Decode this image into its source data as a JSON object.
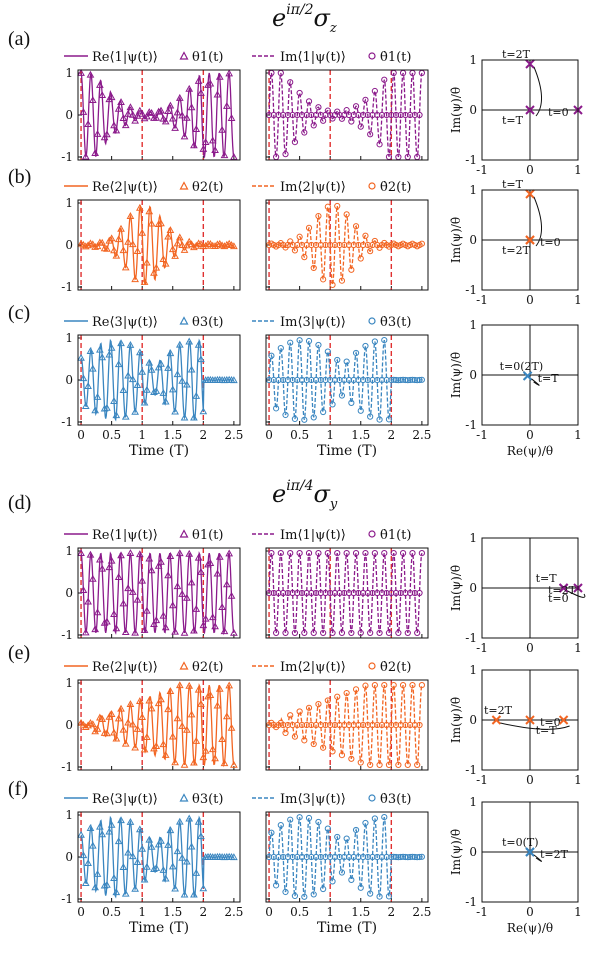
{
  "titles": {
    "top": {
      "base": "e",
      "exponent": "iπ/2",
      "sigma": "σ",
      "sub": "z"
    },
    "bottom": {
      "base": "e",
      "exponent": "iπ/4",
      "sigma": "σ",
      "sub": "y"
    }
  },
  "colors": {
    "1": "#8b1a8b",
    "2": "#f26522",
    "3": "#3a86c0",
    "vline": "#e03030"
  },
  "chart_data": [
    {
      "panel": "(a)",
      "type": "line",
      "level": "1",
      "block": "σz",
      "legend_left": [
        "Re⟨1|ψ(t)⟩",
        "θ1(t)"
      ],
      "legend_right": [
        "Im⟨1|ψ(t)⟩",
        "θ̇1(t)"
      ],
      "envelope": "dip",
      "vlines": [
        0,
        1,
        2
      ],
      "xlim": [
        -0.05,
        2.6
      ],
      "ylim": [
        -1,
        1
      ],
      "yticks": [
        "1",
        "0",
        "-1"
      ],
      "xticks": [],
      "phase": {
        "ylabel": "Im(ψ)/θ̇",
        "xlabel": "",
        "xticks": [
          "-1",
          "0",
          "1"
        ],
        "yticks": [
          "1",
          "0",
          "-1"
        ],
        "points": [
          {
            "x": 0,
            "y": 1,
            "label": "t=2T"
          },
          {
            "x": 1,
            "y": 0,
            "label": "t=0"
          },
          {
            "x": 0,
            "y": 0,
            "label": "t=T"
          }
        ]
      }
    },
    {
      "panel": "(b)",
      "type": "line",
      "level": "2",
      "block": "σz",
      "legend_left": [
        "Re⟨2|ψ(t)⟩",
        "θ2(t)"
      ],
      "legend_right": [
        "Im⟨2|ψ(t)⟩",
        "θ̇2(t)"
      ],
      "envelope": "bump",
      "vlines": [
        0,
        1,
        2
      ],
      "xlim": [
        -0.05,
        2.6
      ],
      "ylim": [
        -1,
        1
      ],
      "yticks": [
        "1",
        "0",
        "-1"
      ],
      "xticks": [],
      "phase": {
        "ylabel": "Im(ψ)/θ̇",
        "xlabel": "",
        "xticks": [
          "-1",
          "0",
          "1"
        ],
        "yticks": [
          "1",
          "0",
          "-1"
        ],
        "points": [
          {
            "x": 0,
            "y": 1,
            "label": "t=T"
          },
          {
            "x": 0,
            "y": 0,
            "label": "t=0"
          },
          {
            "x": 0,
            "y": 0,
            "label": "t=2T"
          }
        ]
      }
    },
    {
      "panel": "(c)",
      "type": "line",
      "level": "3",
      "block": "σz",
      "legend_left": [
        "Re⟨3|ψ(t)⟩",
        "θ3(t)"
      ],
      "legend_right": [
        "Im⟨3|ψ(t)⟩",
        "θ̇3(t)"
      ],
      "envelope": "half",
      "vlines": [
        0,
        1,
        2
      ],
      "xlim": [
        -0.05,
        2.6
      ],
      "ylim": [
        -1,
        1
      ],
      "yticks": [
        "1",
        "0",
        "-1"
      ],
      "xticks": [
        "0",
        "0.5",
        "1",
        "1.5",
        "2",
        "2.5"
      ],
      "xlabel": "Time (T)",
      "phase": {
        "ylabel": "Im(ψ)/θ̇",
        "xlabel": "Re(ψ)/θ",
        "xticks": [
          "-1",
          "0",
          "1"
        ],
        "yticks": [
          "1",
          "0",
          "-1"
        ],
        "points": [
          {
            "x": -0.05,
            "y": -0.02,
            "label": "t=0(2T)"
          },
          {
            "x": -0.05,
            "y": -0.02,
            "label": "t=T"
          }
        ]
      }
    },
    {
      "panel": "(d)",
      "type": "line",
      "level": "1",
      "block": "σy",
      "legend_left": [
        "Re⟨1|ψ(t)⟩",
        "θ1(t)"
      ],
      "legend_right": [
        "Im⟨1|ψ(t)⟩",
        "θ̇1(t)"
      ],
      "envelope": "flat",
      "vlines": [
        0,
        1,
        2
      ],
      "xlim": [
        -0.05,
        2.6
      ],
      "ylim": [
        -1,
        1
      ],
      "yticks": [
        "1",
        "0",
        "-1"
      ],
      "xticks": [],
      "phase": {
        "ylabel": "Im(ψ)/θ̇",
        "xlabel": "",
        "xticks": [
          "-1",
          "0",
          "1"
        ],
        "yticks": [
          "1",
          "0",
          "-1"
        ],
        "points": [
          {
            "x": 0.7,
            "y": 0,
            "label": "t=T"
          },
          {
            "x": 0.7,
            "y": 0,
            "label": "t=2T"
          },
          {
            "x": 1,
            "y": 0,
            "label": "t=0"
          }
        ]
      }
    },
    {
      "panel": "(e)",
      "type": "line",
      "level": "2",
      "block": "σy",
      "legend_left": [
        "Re⟨2|ψ(t)⟩",
        "θ2(t)"
      ],
      "legend_right": [
        "Im⟨2|ψ(t)⟩",
        "θ̇2(t)"
      ],
      "envelope": "rise",
      "vlines": [
        0,
        1,
        2
      ],
      "xlim": [
        -0.05,
        2.6
      ],
      "ylim": [
        -1,
        1
      ],
      "yticks": [
        "1",
        "0",
        "-1"
      ],
      "xticks": [],
      "phase": {
        "ylabel": "Im(ψ)/θ̇",
        "xlabel": "",
        "xticks": [
          "-1",
          "0",
          "1"
        ],
        "yticks": [
          "1",
          "0",
          "-1"
        ],
        "points": [
          {
            "x": -0.7,
            "y": 0,
            "label": "t=2T"
          },
          {
            "x": 0,
            "y": 0,
            "label": "t=0"
          },
          {
            "x": 0.7,
            "y": 0,
            "label": "t=T"
          }
        ]
      }
    },
    {
      "panel": "(f)",
      "type": "line",
      "level": "3",
      "block": "σy",
      "legend_left": [
        "Re⟨3|ψ(t)⟩",
        "θ3(t)"
      ],
      "legend_right": [
        "Im⟨3|ψ(t)⟩",
        "θ̇3(t)"
      ],
      "envelope": "half",
      "vlines": [
        0,
        1,
        2
      ],
      "xlim": [
        -0.05,
        2.6
      ],
      "ylim": [
        -1,
        1
      ],
      "yticks": [
        "1",
        "0",
        "-1"
      ],
      "xticks": [
        "0",
        "0.5",
        "1",
        "1.5",
        "2",
        "2.5"
      ],
      "xlabel": "Time (T)",
      "phase": {
        "ylabel": "Im(ψ)/θ̇",
        "xlabel": "Re(ψ)/θ",
        "xticks": [
          "-1",
          "0",
          "1"
        ],
        "yticks": [
          "1",
          "0",
          "-1"
        ],
        "points": [
          {
            "x": 0,
            "y": 0,
            "label": "t=0(T)"
          },
          {
            "x": 0,
            "y": 0,
            "label": "t=2T"
          }
        ]
      }
    }
  ]
}
